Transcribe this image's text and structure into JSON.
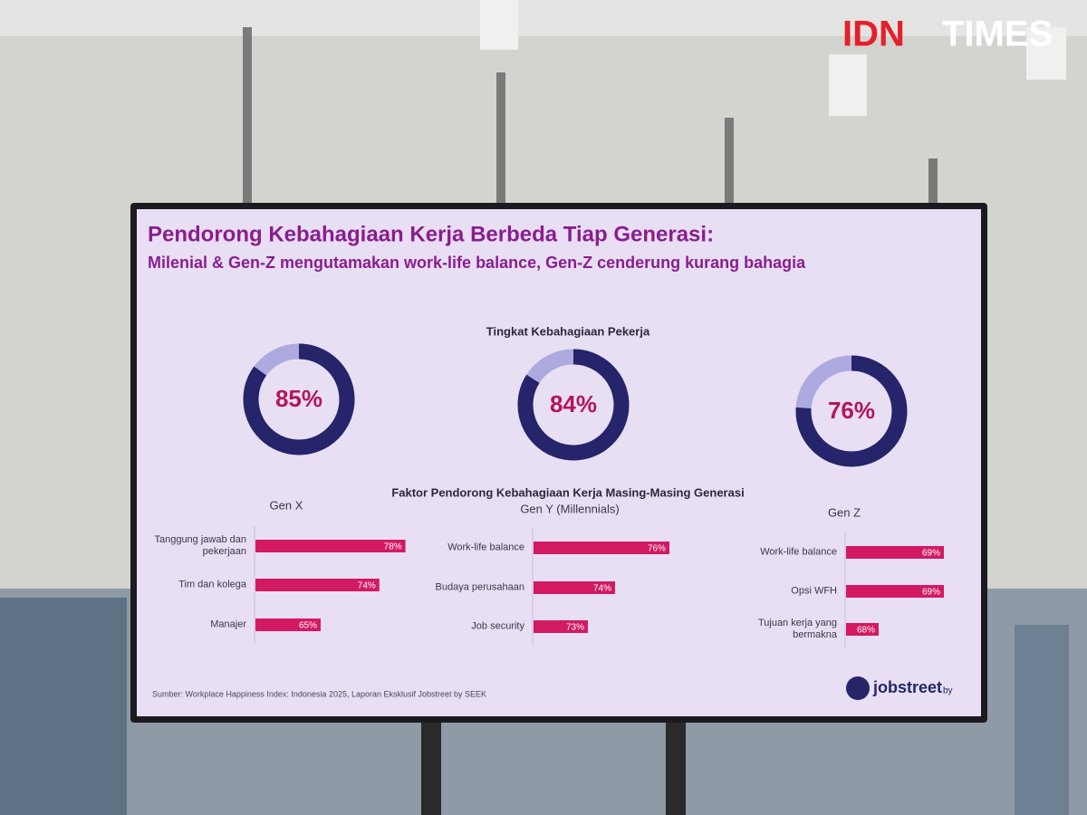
{
  "watermark": {
    "brand": "IDN",
    "name": "TIMES"
  },
  "title": "Pendorong Kebahagiaan Kerja Berbeda Tiap Generasi:",
  "subtitle": "Milenial & Gen-Z mengutamakan work-life balance, Gen-Z cenderung kurang bahagia",
  "factors_title": "Faktor Pendorong Kebahagiaan Kerja Masing-Masing Generasi",
  "source": "Sumber: Workplace Happiness Index: Indonesia 2025, Laporan Eksklusif Jobstreet by SEEK",
  "logo": {
    "name": "jobstreet",
    "suffix": "by"
  },
  "chart_data": [
    {
      "type": "donut",
      "title": "Tingkat Kebahagiaan Pekerja",
      "values": [
        85,
        84,
        76
      ],
      "value_labels": [
        "85%",
        "84%",
        "76%"
      ],
      "color": "#26246a",
      "rest_color": "#aeaadf",
      "label_color": "#b3155b"
    },
    {
      "type": "hbar",
      "title": "Gen X",
      "categories": [
        "Tanggung jawab dan pekerjaan",
        "Tim dan kolega",
        "Manajer"
      ],
      "values": [
        78,
        74,
        65
      ],
      "value_labels": [
        "78%",
        "74%",
        "65%"
      ],
      "color": "#d21a63",
      "xlim": [
        55,
        80
      ]
    },
    {
      "type": "hbar",
      "title": "Gen Y (Millennials)",
      "categories": [
        "Work-life balance",
        "Budaya perusahaan",
        "Job security"
      ],
      "values": [
        76,
        74,
        73
      ],
      "value_labels": [
        "76%",
        "74%",
        "73%"
      ],
      "color": "#d21a63",
      "xlim": [
        71,
        77
      ]
    },
    {
      "type": "hbar",
      "title": "Gen Z",
      "categories": [
        "Work-life balance",
        "Opsi WFH",
        "Tujuan kerja yang bermakna"
      ],
      "values": [
        69,
        69,
        68
      ],
      "value_labels": [
        "69%",
        "69%",
        "68%"
      ],
      "color": "#d21a63",
      "xlim": [
        67.5,
        70
      ]
    }
  ]
}
